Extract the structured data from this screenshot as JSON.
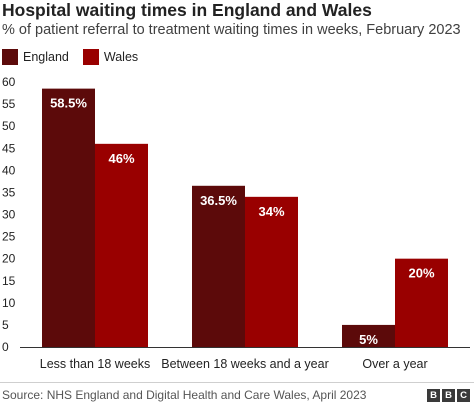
{
  "chart_data": {
    "type": "bar",
    "title": "Hospital waiting times in England and Wales",
    "subtitle": "% of patient referral to treatment waiting times in weeks, February 2023",
    "categories": [
      "Less than 18 weeks",
      "Between 18 weeks and a year",
      "Over a year"
    ],
    "series": [
      {
        "name": "England",
        "color": "#5c0a0a",
        "values": [
          58.5,
          36.5,
          5
        ],
        "labels": [
          "58.5%",
          "36.5%",
          "5%"
        ]
      },
      {
        "name": "Wales",
        "color": "#990000",
        "values": [
          46,
          34,
          20
        ],
        "labels": [
          "46%",
          "34%",
          "20%"
        ]
      }
    ],
    "ylim": [
      0,
      60
    ],
    "yticks": [
      0,
      5,
      10,
      15,
      20,
      25,
      30,
      35,
      40,
      45,
      50,
      55,
      60
    ],
    "grid": false,
    "legend_position": "top-left"
  },
  "footer": {
    "source": "Source: NHS England and Digital Health and Care Wales, April 2023",
    "logo_letters": [
      "B",
      "B",
      "C"
    ]
  }
}
